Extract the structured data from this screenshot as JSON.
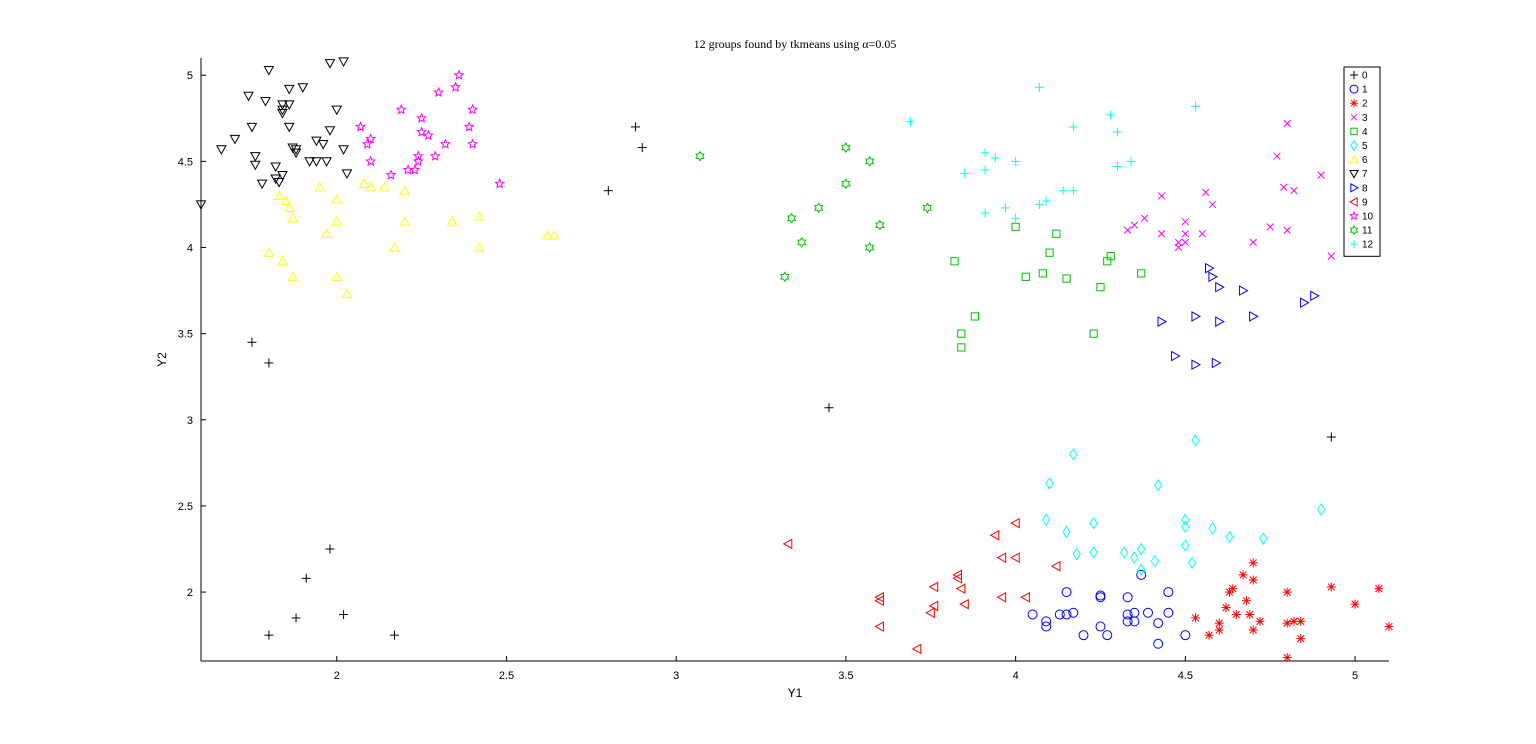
{
  "chart_data": {
    "type": "scatter",
    "title": "12 groups found by tkmeans using α=0.05",
    "xlabel": "Y1",
    "ylabel": "Y2",
    "xlim": [
      1.6,
      5.1
    ],
    "ylim": [
      1.6,
      5.1
    ],
    "xticks": [
      2,
      2.5,
      3,
      3.5,
      4,
      4.5,
      5
    ],
    "xtick_labels": [
      "2",
      "2.5",
      "3",
      "3.5",
      "4",
      "4.5",
      "5"
    ],
    "yticks": [
      2,
      2.5,
      3,
      3.5,
      4,
      4.5,
      5
    ],
    "ytick_labels": [
      "2",
      "2.5",
      "3",
      "3.5",
      "4",
      "4.5",
      "5"
    ],
    "grid": false,
    "legend_position": "top-right",
    "series": [
      {
        "name": "0",
        "marker": "plus",
        "color": "#000000",
        "points": [
          [
            2.88,
            4.7
          ],
          [
            2.9,
            4.58
          ],
          [
            2.8,
            4.33
          ],
          [
            1.75,
            3.45
          ],
          [
            1.8,
            3.33
          ],
          [
            3.45,
            3.07
          ],
          [
            4.93,
            2.9
          ],
          [
            1.98,
            2.25
          ],
          [
            1.91,
            2.08
          ],
          [
            2.02,
            1.87
          ],
          [
            1.88,
            1.85
          ],
          [
            1.8,
            1.75
          ],
          [
            2.17,
            1.75
          ]
        ]
      },
      {
        "name": "1",
        "marker": "circle",
        "color": "#0000ff",
        "points": [
          [
            4.05,
            1.87
          ],
          [
            4.09,
            1.83
          ],
          [
            4.09,
            1.8
          ],
          [
            4.13,
            1.87
          ],
          [
            4.15,
            1.87
          ],
          [
            4.17,
            1.88
          ],
          [
            4.2,
            1.75
          ],
          [
            4.25,
            1.98
          ],
          [
            4.25,
            1.97
          ],
          [
            4.25,
            1.8
          ],
          [
            4.27,
            1.75
          ],
          [
            4.33,
            1.87
          ],
          [
            4.33,
            1.83
          ],
          [
            4.33,
            1.97
          ],
          [
            4.35,
            1.88
          ],
          [
            4.35,
            1.83
          ],
          [
            4.37,
            2.1
          ],
          [
            4.39,
            1.88
          ],
          [
            4.42,
            1.82
          ],
          [
            4.42,
            1.7
          ],
          [
            4.45,
            2.0
          ],
          [
            4.45,
            1.88
          ],
          [
            4.5,
            1.75
          ],
          [
            4.15,
            2.0
          ]
        ]
      },
      {
        "name": "2",
        "marker": "asterisk",
        "color": "#ff0000",
        "points": [
          [
            4.53,
            1.85
          ],
          [
            4.57,
            1.75
          ],
          [
            4.6,
            1.78
          ],
          [
            4.6,
            1.82
          ],
          [
            4.62,
            1.91
          ],
          [
            4.63,
            2.0
          ],
          [
            4.64,
            2.02
          ],
          [
            4.65,
            1.87
          ],
          [
            4.67,
            2.1
          ],
          [
            4.69,
            1.87
          ],
          [
            4.7,
            2.17
          ],
          [
            4.7,
            2.07
          ],
          [
            4.7,
            1.78
          ],
          [
            4.72,
            1.83
          ],
          [
            4.8,
            2.0
          ],
          [
            4.8,
            1.82
          ],
          [
            4.8,
            1.62
          ],
          [
            4.82,
            1.83
          ],
          [
            4.84,
            1.83
          ],
          [
            4.84,
            1.73
          ],
          [
            4.93,
            2.03
          ],
          [
            5.0,
            1.93
          ],
          [
            5.07,
            2.02
          ],
          [
            5.1,
            1.8
          ],
          [
            4.68,
            1.95
          ]
        ]
      },
      {
        "name": "3",
        "marker": "x",
        "color": "#ff00ff",
        "points": [
          [
            4.35,
            4.13
          ],
          [
            4.38,
            4.17
          ],
          [
            4.43,
            4.3
          ],
          [
            4.43,
            4.08
          ],
          [
            4.48,
            4.0
          ],
          [
            4.5,
            4.15
          ],
          [
            4.5,
            4.08
          ],
          [
            4.5,
            4.03
          ],
          [
            4.55,
            4.08
          ],
          [
            4.56,
            4.32
          ],
          [
            4.58,
            4.25
          ],
          [
            4.7,
            4.03
          ],
          [
            4.75,
            4.12
          ],
          [
            4.77,
            4.53
          ],
          [
            4.79,
            4.35
          ],
          [
            4.8,
            4.72
          ],
          [
            4.8,
            4.1
          ],
          [
            4.82,
            4.33
          ],
          [
            4.9,
            4.42
          ],
          [
            4.93,
            3.95
          ],
          [
            4.33,
            4.1
          ],
          [
            4.48,
            4.03
          ]
        ]
      },
      {
        "name": "4",
        "marker": "square",
        "color": "#00c000",
        "points": [
          [
            3.82,
            3.92
          ],
          [
            3.84,
            3.5
          ],
          [
            3.84,
            3.42
          ],
          [
            3.88,
            3.6
          ],
          [
            4.0,
            4.12
          ],
          [
            4.03,
            3.83
          ],
          [
            4.08,
            3.85
          ],
          [
            4.1,
            3.97
          ],
          [
            4.12,
            4.08
          ],
          [
            4.15,
            3.82
          ],
          [
            4.23,
            3.5
          ],
          [
            4.25,
            3.77
          ],
          [
            4.27,
            3.92
          ],
          [
            4.28,
            3.95
          ],
          [
            4.37,
            3.85
          ]
        ]
      },
      {
        "name": "5",
        "marker": "diamond",
        "color": "#00ffff",
        "points": [
          [
            4.1,
            2.63
          ],
          [
            4.09,
            2.42
          ],
          [
            4.15,
            2.35
          ],
          [
            4.17,
            2.8
          ],
          [
            4.18,
            2.22
          ],
          [
            4.23,
            2.4
          ],
          [
            4.23,
            2.23
          ],
          [
            4.32,
            2.23
          ],
          [
            4.35,
            2.2
          ],
          [
            4.37,
            2.25
          ],
          [
            4.37,
            2.13
          ],
          [
            4.41,
            2.18
          ],
          [
            4.42,
            2.62
          ],
          [
            4.5,
            2.42
          ],
          [
            4.5,
            2.38
          ],
          [
            4.5,
            2.27
          ],
          [
            4.52,
            2.17
          ],
          [
            4.53,
            2.88
          ],
          [
            4.58,
            2.37
          ],
          [
            4.63,
            2.32
          ],
          [
            4.73,
            2.31
          ],
          [
            4.9,
            2.48
          ]
        ]
      },
      {
        "name": "6",
        "marker": "triangle-up",
        "color": "#ffff00",
        "points": [
          [
            1.8,
            3.97
          ],
          [
            1.84,
            3.92
          ],
          [
            1.83,
            4.3
          ],
          [
            1.85,
            4.27
          ],
          [
            1.86,
            4.23
          ],
          [
            1.87,
            4.17
          ],
          [
            1.87,
            3.83
          ],
          [
            1.95,
            4.35
          ],
          [
            1.97,
            4.08
          ],
          [
            2.0,
            4.28
          ],
          [
            2.0,
            4.15
          ],
          [
            2.0,
            3.83
          ],
          [
            2.03,
            3.73
          ],
          [
            2.08,
            4.37
          ],
          [
            2.1,
            4.35
          ],
          [
            2.14,
            4.35
          ],
          [
            2.17,
            4.0
          ],
          [
            2.2,
            4.33
          ],
          [
            2.2,
            4.15
          ],
          [
            2.34,
            4.15
          ],
          [
            2.42,
            4.18
          ],
          [
            2.42,
            4.0
          ],
          [
            2.62,
            4.07
          ],
          [
            2.64,
            4.07
          ]
        ]
      },
      {
        "name": "7",
        "marker": "triangle-down",
        "color": "#000000",
        "points": [
          [
            1.6,
            4.25
          ],
          [
            1.66,
            4.57
          ],
          [
            1.7,
            4.63
          ],
          [
            1.74,
            4.88
          ],
          [
            1.75,
            4.7
          ],
          [
            1.76,
            4.53
          ],
          [
            1.76,
            4.48
          ],
          [
            1.78,
            4.37
          ],
          [
            1.79,
            4.85
          ],
          [
            1.8,
            5.03
          ],
          [
            1.82,
            4.47
          ],
          [
            1.82,
            4.4
          ],
          [
            1.83,
            4.38
          ],
          [
            1.84,
            4.83
          ],
          [
            1.84,
            4.78
          ],
          [
            1.84,
            4.42
          ],
          [
            1.86,
            4.92
          ],
          [
            1.86,
            4.83
          ],
          [
            1.86,
            4.7
          ],
          [
            1.87,
            4.58
          ],
          [
            1.88,
            4.57
          ],
          [
            1.88,
            4.55
          ],
          [
            1.9,
            4.93
          ],
          [
            1.92,
            4.5
          ],
          [
            1.94,
            4.62
          ],
          [
            1.94,
            4.5
          ],
          [
            1.96,
            4.6
          ],
          [
            1.98,
            4.68
          ],
          [
            1.98,
            5.07
          ],
          [
            2.0,
            4.8
          ],
          [
            2.02,
            5.08
          ],
          [
            2.02,
            4.57
          ],
          [
            2.03,
            4.43
          ],
          [
            1.97,
            4.5
          ],
          [
            1.84,
            4.8
          ]
        ]
      },
      {
        "name": "8",
        "marker": "triangle-right",
        "color": "#0000ff",
        "points": [
          [
            4.43,
            3.57
          ],
          [
            4.47,
            3.37
          ],
          [
            4.53,
            3.6
          ],
          [
            4.53,
            3.32
          ],
          [
            4.57,
            3.88
          ],
          [
            4.58,
            3.83
          ],
          [
            4.59,
            3.33
          ],
          [
            4.6,
            3.77
          ],
          [
            4.6,
            3.57
          ],
          [
            4.67,
            3.75
          ],
          [
            4.7,
            3.6
          ],
          [
            4.85,
            3.68
          ],
          [
            4.88,
            3.72
          ]
        ]
      },
      {
        "name": "9",
        "marker": "triangle-left",
        "color": "#ff0000",
        "points": [
          [
            3.33,
            2.28
          ],
          [
            3.6,
            1.97
          ],
          [
            3.6,
            1.95
          ],
          [
            3.6,
            1.8
          ],
          [
            3.71,
            1.67
          ],
          [
            3.75,
            1.88
          ],
          [
            3.76,
            1.92
          ],
          [
            3.76,
            2.03
          ],
          [
            3.83,
            2.1
          ],
          [
            3.83,
            2.08
          ],
          [
            3.84,
            2.02
          ],
          [
            3.85,
            1.93
          ],
          [
            3.94,
            2.33
          ],
          [
            3.96,
            2.2
          ],
          [
            3.96,
            1.97
          ],
          [
            4.0,
            2.4
          ],
          [
            4.0,
            2.2
          ],
          [
            4.03,
            1.97
          ],
          [
            4.12,
            2.15
          ]
        ]
      },
      {
        "name": "10",
        "marker": "pentagram",
        "color": "#ff00ff",
        "points": [
          [
            2.07,
            4.7
          ],
          [
            2.09,
            4.6
          ],
          [
            2.1,
            4.63
          ],
          [
            2.1,
            4.5
          ],
          [
            2.16,
            4.42
          ],
          [
            2.19,
            4.8
          ],
          [
            2.21,
            4.45
          ],
          [
            2.23,
            4.45
          ],
          [
            2.24,
            4.53
          ],
          [
            2.24,
            4.5
          ],
          [
            2.25,
            4.75
          ],
          [
            2.25,
            4.67
          ],
          [
            2.27,
            4.65
          ],
          [
            2.29,
            4.53
          ],
          [
            2.3,
            4.9
          ],
          [
            2.32,
            4.6
          ],
          [
            2.35,
            4.93
          ],
          [
            2.36,
            5.0
          ],
          [
            2.39,
            4.7
          ],
          [
            2.4,
            4.8
          ],
          [
            2.4,
            4.6
          ],
          [
            2.48,
            4.37
          ]
        ]
      },
      {
        "name": "11",
        "marker": "hexagram",
        "color": "#00c000",
        "points": [
          [
            3.07,
            4.53
          ],
          [
            3.32,
            3.83
          ],
          [
            3.34,
            4.17
          ],
          [
            3.37,
            4.03
          ],
          [
            3.42,
            4.23
          ],
          [
            3.5,
            4.58
          ],
          [
            3.5,
            4.37
          ],
          [
            3.57,
            4.5
          ],
          [
            3.57,
            4.0
          ],
          [
            3.6,
            4.13
          ],
          [
            3.74,
            4.23
          ]
        ]
      },
      {
        "name": "12",
        "marker": "plus",
        "color": "#00ffff",
        "points": [
          [
            3.69,
            4.73
          ],
          [
            3.85,
            4.43
          ],
          [
            3.91,
            4.55
          ],
          [
            3.91,
            4.45
          ],
          [
            3.91,
            4.2
          ],
          [
            3.94,
            4.52
          ],
          [
            3.97,
            4.23
          ],
          [
            4.0,
            4.5
          ],
          [
            4.0,
            4.17
          ],
          [
            4.07,
            4.25
          ],
          [
            4.07,
            4.93
          ],
          [
            4.09,
            4.27
          ],
          [
            4.14,
            4.33
          ],
          [
            4.17,
            4.7
          ],
          [
            4.17,
            4.33
          ],
          [
            4.28,
            4.77
          ],
          [
            4.3,
            4.67
          ],
          [
            4.3,
            4.47
          ],
          [
            4.34,
            4.5
          ],
          [
            4.53,
            4.82
          ]
        ]
      }
    ]
  }
}
